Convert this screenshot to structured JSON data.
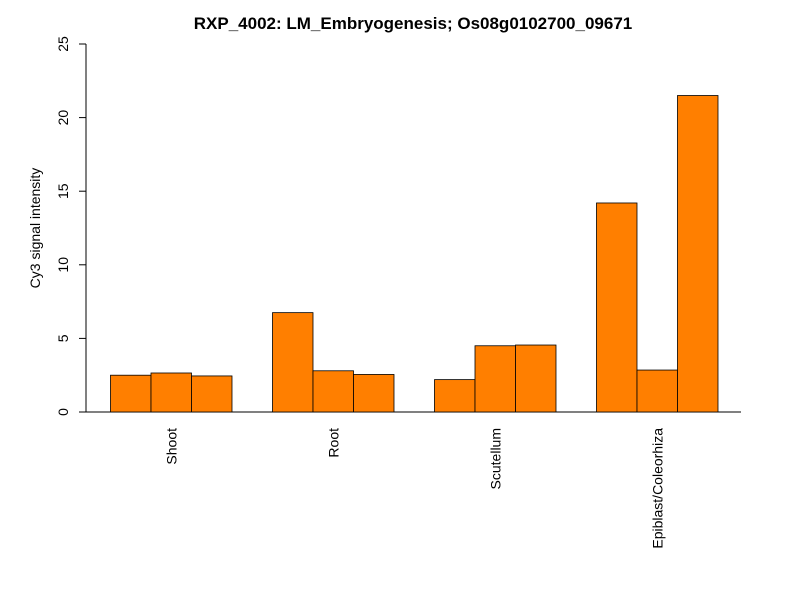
{
  "chart_data": {
    "type": "bar",
    "title": "RXP_4002: LM_Embryogenesis; Os08g0102700_09671",
    "xlabel": "",
    "ylabel": "Cy3 signal intensity",
    "ylim": [
      0,
      25
    ],
    "yticks": [
      0,
      5,
      10,
      15,
      20,
      25
    ],
    "categories": [
      "Shoot",
      "Root",
      "Scutellum",
      "Epiblast/Coleorhiza"
    ],
    "replicates_per_category": 3,
    "values": [
      [
        2.5,
        2.65,
        2.45
      ],
      [
        6.75,
        2.8,
        2.55
      ],
      [
        2.2,
        4.5,
        4.55
      ],
      [
        14.2,
        2.85,
        21.5
      ]
    ],
    "bar_color": "#ff7f00",
    "grid": false,
    "legend": "none"
  }
}
